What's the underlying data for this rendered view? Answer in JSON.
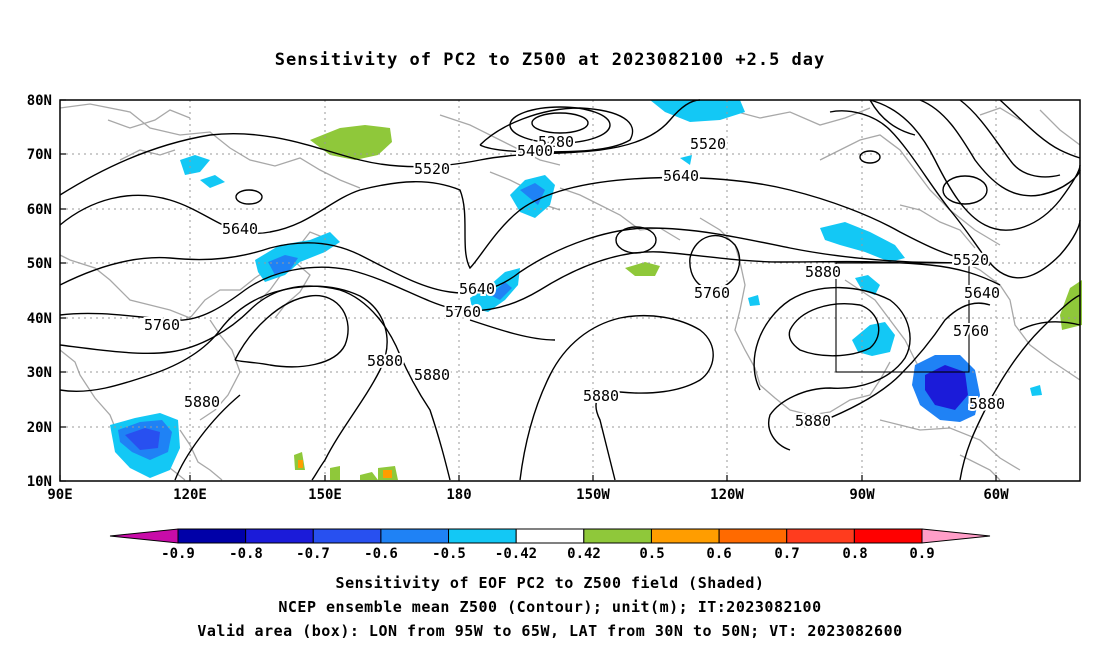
{
  "title": "Sensitivity of PC2 to Z500 at 2023082100 +2.5 day",
  "y_ticks": [
    "80N",
    "70N",
    "60N",
    "50N",
    "40N",
    "30N",
    "20N",
    "10N"
  ],
  "x_ticks": [
    "90E",
    "120E",
    "150E",
    "180",
    "150W",
    "120W",
    "90W",
    "60W"
  ],
  "contour_labels": [
    {
      "text": "5280"
    },
    {
      "text": "5400"
    },
    {
      "text": "5520"
    },
    {
      "text": "5520"
    },
    {
      "text": "5640"
    },
    {
      "text": "5640"
    },
    {
      "text": "5760"
    },
    {
      "text": "5880"
    },
    {
      "text": "5640"
    },
    {
      "text": "5760"
    },
    {
      "text": "5880"
    },
    {
      "text": "5880"
    },
    {
      "text": "5880"
    },
    {
      "text": "5760"
    },
    {
      "text": "5880"
    },
    {
      "text": "5880"
    },
    {
      "text": "5520"
    },
    {
      "text": "5640"
    },
    {
      "text": "5760"
    },
    {
      "text": "5880"
    }
  ],
  "colorbar": {
    "labels": [
      "-0.9",
      "-0.8",
      "-0.7",
      "-0.6",
      "-0.5",
      "-0.42",
      "0.42",
      "0.5",
      "0.6",
      "0.7",
      "0.8",
      "0.9"
    ],
    "colors": [
      "#0000a8",
      "#1b1bd9",
      "#2850f0",
      "#1f82f5",
      "#13c8f5",
      "#ffffff",
      "#8fc83a",
      "#ff9d00",
      "#ff6a00",
      "#ff3c1e",
      "#ff0000"
    ],
    "under_color": "#c80ca8",
    "over_color": "#ff9ec8"
  },
  "captions": [
    "Sensitivity of EOF PC2 to Z500 field (Shaded)",
    "NCEP ensemble mean Z500 (Contour); unit(m); IT:2023082100",
    "Valid area (box): LON from 95W to 65W, LAT from 30N to 50N; VT: 2023082600"
  ],
  "valid_box": {
    "lon": [
      "95W",
      "65W"
    ],
    "lat": [
      "30N",
      "50N"
    ]
  }
}
